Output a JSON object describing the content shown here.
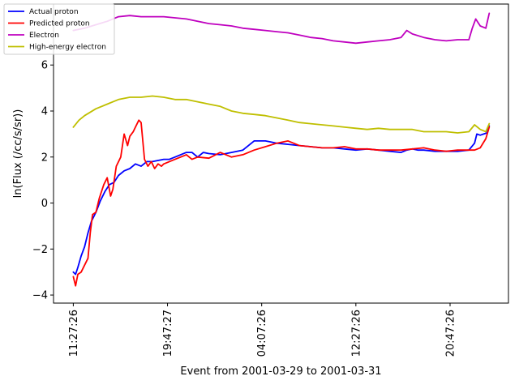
{
  "chart_data": {
    "type": "line",
    "xlabel": "Event from 2001-03-29 to 2001-03-31",
    "ylabel": "ln(Flux (/cc/s/sr))",
    "x_ticks": [
      "11:27:26",
      "19:47:27",
      "04:07:26",
      "12:27:26",
      "20:47:26"
    ],
    "x_tick_hours": [
      0,
      8.3336,
      16.6667,
      25,
      33.3333
    ],
    "xlim_hours": [
      -1.75,
      38.5
    ],
    "ylim": [
      -4.35,
      8.65
    ],
    "y_ticks": [
      -4,
      -2,
      0,
      2,
      4,
      6
    ],
    "grid": false,
    "legend_position": "upper-left",
    "series": [
      {
        "name": "Actual proton",
        "color": "#0000ff",
        "x_hours": [
          0,
          0.2,
          0.4,
          0.7,
          1,
          1.3,
          1.6,
          2,
          2.4,
          2.8,
          3.2,
          3.6,
          4,
          4.5,
          5,
          5.5,
          6,
          6.5,
          7,
          7.5,
          8,
          8.5,
          9,
          9.5,
          10,
          10.5,
          11,
          11.5,
          12,
          13,
          14,
          15,
          16,
          16.5,
          17,
          17.5,
          18,
          19,
          20,
          21,
          22,
          23,
          24,
          25,
          26,
          27,
          28,
          29,
          29.5,
          30,
          30.5,
          31,
          32,
          33,
          34,
          35,
          35.5,
          35.7,
          36,
          36.3,
          36.6,
          36.8
        ],
        "values": [
          -3.0,
          -3.1,
          -2.8,
          -2.3,
          -1.9,
          -1.3,
          -0.8,
          -0.4,
          0.1,
          0.5,
          0.8,
          0.9,
          1.2,
          1.4,
          1.5,
          1.7,
          1.6,
          1.8,
          1.8,
          1.85,
          1.9,
          1.9,
          2.0,
          2.1,
          2.2,
          2.2,
          2.0,
          2.2,
          2.15,
          2.1,
          2.2,
          2.3,
          2.7,
          2.7,
          2.7,
          2.65,
          2.6,
          2.55,
          2.5,
          2.45,
          2.4,
          2.4,
          2.35,
          2.3,
          2.35,
          2.3,
          2.25,
          2.2,
          2.3,
          2.35,
          2.3,
          2.3,
          2.25,
          2.25,
          2.25,
          2.3,
          2.6,
          3.0,
          2.95,
          3.0,
          3.05,
          3.35
        ]
      },
      {
        "name": "Predicted proton",
        "color": "#ff0000",
        "x_hours": [
          0,
          0.2,
          0.4,
          0.7,
          1,
          1.3,
          1.5,
          1.7,
          2,
          2.3,
          2.7,
          3,
          3.3,
          3.5,
          3.8,
          4.2,
          4.5,
          4.8,
          5,
          5.3,
          5.5,
          5.8,
          6,
          6.3,
          6.6,
          6.9,
          7.2,
          7.5,
          7.8,
          8,
          8.5,
          9,
          9.5,
          10,
          10.5,
          11,
          12,
          13,
          14,
          15,
          16,
          17,
          18,
          19,
          20,
          21,
          22,
          23,
          24,
          25,
          26,
          27,
          28,
          29,
          30,
          31,
          32,
          33,
          34,
          35,
          35.5,
          36,
          36.5,
          36.8
        ],
        "values": [
          -3.2,
          -3.6,
          -3.1,
          -3.0,
          -2.7,
          -2.4,
          -1.3,
          -0.5,
          -0.4,
          0.2,
          0.8,
          1.1,
          0.3,
          0.6,
          1.6,
          2.0,
          3.0,
          2.5,
          2.9,
          3.1,
          3.3,
          3.6,
          3.5,
          1.9,
          1.6,
          1.8,
          1.5,
          1.7,
          1.6,
          1.7,
          1.8,
          1.9,
          2.0,
          2.1,
          1.9,
          2.0,
          1.95,
          2.2,
          2.0,
          2.1,
          2.3,
          2.45,
          2.6,
          2.7,
          2.5,
          2.45,
          2.4,
          2.4,
          2.45,
          2.35,
          2.35,
          2.3,
          2.3,
          2.3,
          2.35,
          2.4,
          2.3,
          2.25,
          2.3,
          2.3,
          2.3,
          2.4,
          2.8,
          3.3
        ]
      },
      {
        "name": "Electron",
        "color": "#bf00bf",
        "x_hours": [
          0,
          1,
          2,
          3,
          4,
          5,
          6,
          7,
          8,
          9,
          10,
          11,
          12,
          13,
          14,
          15,
          16,
          17,
          18,
          19,
          20,
          21,
          22,
          23,
          24,
          25,
          26,
          27,
          28,
          29,
          29.5,
          30,
          31,
          32,
          33,
          34,
          35,
          35.3,
          35.6,
          36,
          36.5,
          36.8
        ],
        "values": [
          7.5,
          7.6,
          7.75,
          7.9,
          8.1,
          8.15,
          8.1,
          8.1,
          8.1,
          8.05,
          8.0,
          7.9,
          7.8,
          7.75,
          7.7,
          7.6,
          7.55,
          7.5,
          7.45,
          7.4,
          7.3,
          7.2,
          7.15,
          7.05,
          7.0,
          6.95,
          7.0,
          7.05,
          7.1,
          7.2,
          7.5,
          7.35,
          7.2,
          7.1,
          7.05,
          7.1,
          7.1,
          7.6,
          8.0,
          7.7,
          7.6,
          8.25
        ]
      },
      {
        "name": "High-energy electron",
        "color": "#bfbf00",
        "x_hours": [
          0,
          0.5,
          1,
          2,
          3,
          4,
          5,
          6,
          7,
          8,
          9,
          10,
          11,
          12,
          13,
          14,
          15,
          16,
          17,
          18,
          19,
          20,
          21,
          22,
          23,
          24,
          25,
          26,
          27,
          28,
          29,
          30,
          31,
          32,
          33,
          34,
          35,
          35.5,
          36,
          36.5,
          36.8
        ],
        "values": [
          3.3,
          3.6,
          3.8,
          4.1,
          4.3,
          4.5,
          4.6,
          4.6,
          4.65,
          4.6,
          4.5,
          4.5,
          4.4,
          4.3,
          4.2,
          4.0,
          3.9,
          3.85,
          3.8,
          3.7,
          3.6,
          3.5,
          3.45,
          3.4,
          3.35,
          3.3,
          3.25,
          3.2,
          3.25,
          3.2,
          3.2,
          3.2,
          3.1,
          3.1,
          3.1,
          3.05,
          3.1,
          3.4,
          3.2,
          3.1,
          3.45
        ]
      }
    ]
  }
}
